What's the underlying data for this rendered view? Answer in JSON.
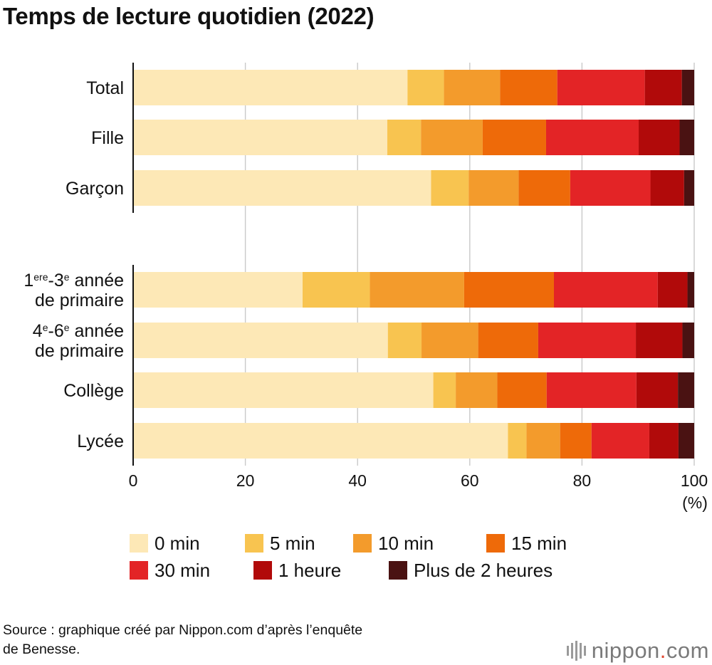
{
  "title": "Temps de lecture quotidien (2022)",
  "chart_data": {
    "type": "bar",
    "orientation": "horizontal",
    "stacked": true,
    "title": "Temps de lecture quotidien (2022)",
    "xlabel": "(%)",
    "xlim": [
      0,
      100
    ],
    "xticks": [
      "0",
      "20",
      "40",
      "60",
      "80",
      "100"
    ],
    "grid": true,
    "categories": [
      {
        "label": "Total"
      },
      {
        "label": "Fille"
      },
      {
        "label": "Garçon"
      },
      {
        "label_parts": [
          "1",
          "ere",
          "-3",
          "e",
          " année"
        ],
        "label_line2": "de primaire"
      },
      {
        "label_parts": [
          "4",
          "e",
          "-6",
          "e",
          " année"
        ],
        "label_line2": "de primaire"
      },
      {
        "label": "Collège"
      },
      {
        "label": "Lycée"
      }
    ],
    "series": [
      {
        "name": "0 min",
        "color": "#fde8b6",
        "values": [
          48.9,
          45.3,
          53.1,
          30.2,
          45.4,
          53.5,
          66.8
        ]
      },
      {
        "name": "5 min",
        "color": "#f8c450",
        "values": [
          6.5,
          6.0,
          6.7,
          12.0,
          6.0,
          4.0,
          3.3
        ]
      },
      {
        "name": "10 min",
        "color": "#f39b2c",
        "values": [
          10.0,
          11.0,
          8.9,
          16.8,
          10.1,
          7.4,
          6.0
        ]
      },
      {
        "name": "15 min",
        "color": "#ee6a09",
        "values": [
          10.2,
          11.3,
          9.2,
          16.0,
          10.7,
          8.8,
          5.6
        ]
      },
      {
        "name": "30 min",
        "color": "#e32426",
        "values": [
          15.6,
          16.5,
          14.3,
          18.5,
          17.4,
          16.0,
          10.3
        ]
      },
      {
        "name": "1 heure",
        "color": "#b10a0a",
        "values": [
          6.6,
          7.3,
          6.0,
          5.3,
          8.3,
          7.4,
          5.2
        ]
      },
      {
        "name": "Plus de 2 heures",
        "color": "#4a1212",
        "values": [
          2.2,
          2.6,
          1.8,
          1.2,
          2.1,
          2.9,
          2.8
        ]
      }
    ]
  },
  "source": {
    "line1": "Source : graphique créé par Nippon.com d’après l’enquête",
    "line2": "de Benesse."
  },
  "brand": {
    "name": "nippon",
    "dot": ".",
    "suffix": "com"
  }
}
